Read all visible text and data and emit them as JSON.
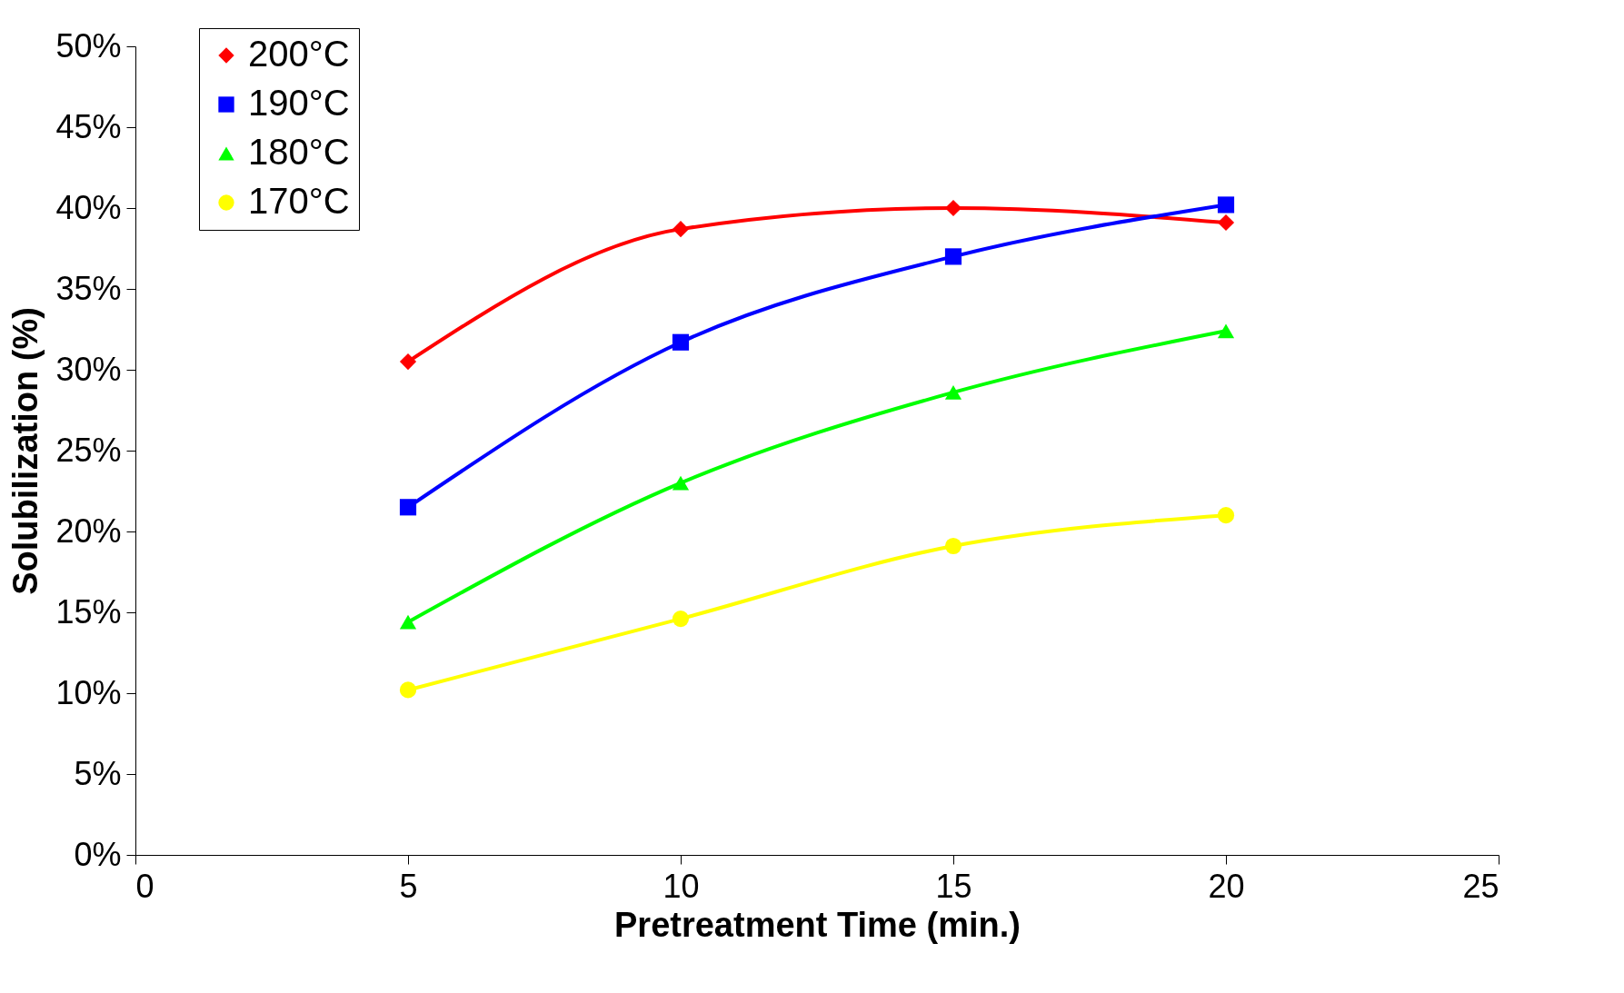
{
  "chart_data": {
    "type": "line",
    "xlabel": "Pretreatment Time (min.)",
    "ylabel": "Solubilization (%)",
    "x": [
      5,
      10,
      15,
      20
    ],
    "series": [
      {
        "name": "200°C",
        "color": "#ff0000",
        "marker": "diamond",
        "values": [
          30.5,
          38.7,
          40.0,
          39.1
        ]
      },
      {
        "name": "190°C",
        "color": "#0000ff",
        "marker": "square",
        "values": [
          21.5,
          31.7,
          37.0,
          40.2
        ]
      },
      {
        "name": "180°C",
        "color": "#00ff00",
        "marker": "triangle",
        "values": [
          14.4,
          23.0,
          28.6,
          32.4
        ]
      },
      {
        "name": "170°C",
        "color": "#ffff00",
        "marker": "circle",
        "values": [
          10.2,
          14.6,
          19.1,
          21.0
        ]
      }
    ],
    "xlim": [
      0,
      25
    ],
    "xticks": [
      0,
      5,
      10,
      15,
      20,
      25
    ],
    "ylim": [
      0,
      50
    ],
    "yticks": [
      {
        "value": 0,
        "label": "0%"
      },
      {
        "value": 5,
        "label": "5%"
      },
      {
        "value": 10,
        "label": "10%"
      },
      {
        "value": 15,
        "label": "15%"
      },
      {
        "value": 20,
        "label": "20%"
      },
      {
        "value": 25,
        "label": "25%"
      },
      {
        "value": 30,
        "label": "30%"
      },
      {
        "value": 35,
        "label": "35%"
      },
      {
        "value": 40,
        "label": "40%"
      },
      {
        "value": 45,
        "label": "45%"
      },
      {
        "value": 50,
        "label": "50%"
      }
    ],
    "grid": false,
    "legend": "top left",
    "line_style": "solid"
  }
}
